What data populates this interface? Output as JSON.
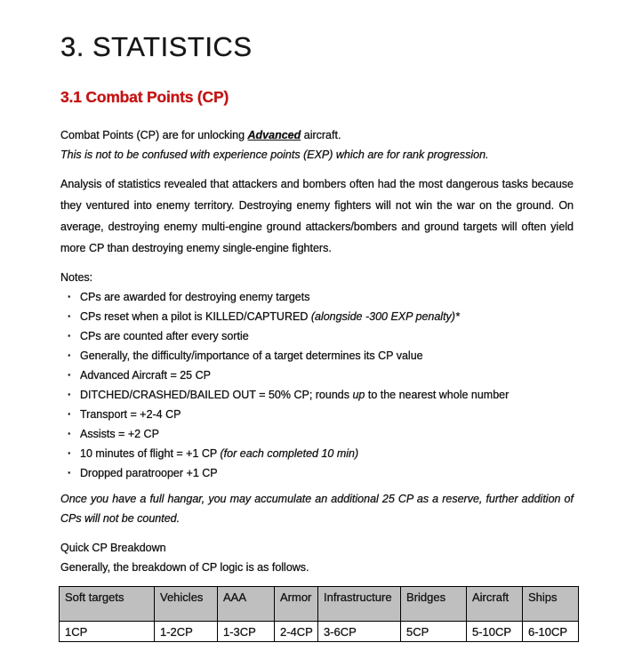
{
  "colors": {
    "accent_red": "#c41414",
    "table_header_bg": "#bfbfbf",
    "text": "#141414"
  },
  "title": "3. STATISTICS",
  "section": {
    "heading": "3.1 Combat Points (CP)"
  },
  "intro": {
    "line1": [
      {
        "t": "Combat Points (CP) are for unlocking "
      },
      {
        "t": "Advanced",
        "s": "biu"
      },
      {
        "t": " aircraft."
      }
    ],
    "line2": [
      {
        "t": "This is not to be confused with experience points (EXP) which are for rank progression.",
        "s": "i"
      }
    ]
  },
  "analysis": "Analysis of statistics revealed that attackers and bombers often had the most dangerous tasks because they ventured into enemy territory. Destroying enemy fighters will not win the war on the ground. On average, destroying enemy multi-engine ground attackers/bombers and ground targets will often yield more CP than destroying enemy single-engine fighters.",
  "notes": {
    "heading": "Notes:",
    "items": [
      [
        {
          "t": "CPs are awarded for destroying enemy targets"
        }
      ],
      [
        {
          "t": "CPs reset when a pilot is KILLED/CAPTURED "
        },
        {
          "t": "(alongside -300 EXP penalty)*",
          "s": "i"
        }
      ],
      [
        {
          "t": "CPs are counted after every sortie"
        }
      ],
      [
        {
          "t": "Generally, the difficulty/importance of a target determines its CP value"
        }
      ]
    ]
  },
  "cp_values": {
    "items": [
      [
        {
          "t": "Advanced Aircraft = 25 CP"
        }
      ],
      [
        {
          "t": "DITCHED/CRASHED/BAILED OUT = 50% CP; rounds "
        },
        {
          "t": "up",
          "s": "i"
        },
        {
          "t": " to the nearest whole number"
        }
      ],
      [
        {
          "t": "Transport = +2-4 CP"
        }
      ],
      [
        {
          "t": "Assists = +2 CP"
        }
      ],
      [
        {
          "t": "10 minutes of flight = +1 CP "
        },
        {
          "t": "(for each completed 10 min)",
          "s": "i"
        }
      ],
      [
        {
          "t": "Dropped paratrooper +1 CP"
        }
      ]
    ]
  },
  "reserve_note": "Once you have a full hangar, you may accumulate an additional 25 CP as a reserve, further addition of CPs will not be counted.",
  "breakdown": {
    "heading": "Quick CP Breakdown",
    "subheading": "Generally, the breakdown of CP logic is as follows.",
    "table": {
      "headers": [
        "Soft targets",
        "Vehicles",
        "AAA",
        "Armor",
        "Infrastructure",
        "Bridges",
        "Aircraft",
        "Ships"
      ],
      "rows": [
        [
          "1CP",
          "1-2CP",
          "1-3CP",
          "2-4CP",
          "3-6CP",
          "5CP",
          "5-10CP",
          "6-10CP"
        ]
      ]
    }
  }
}
